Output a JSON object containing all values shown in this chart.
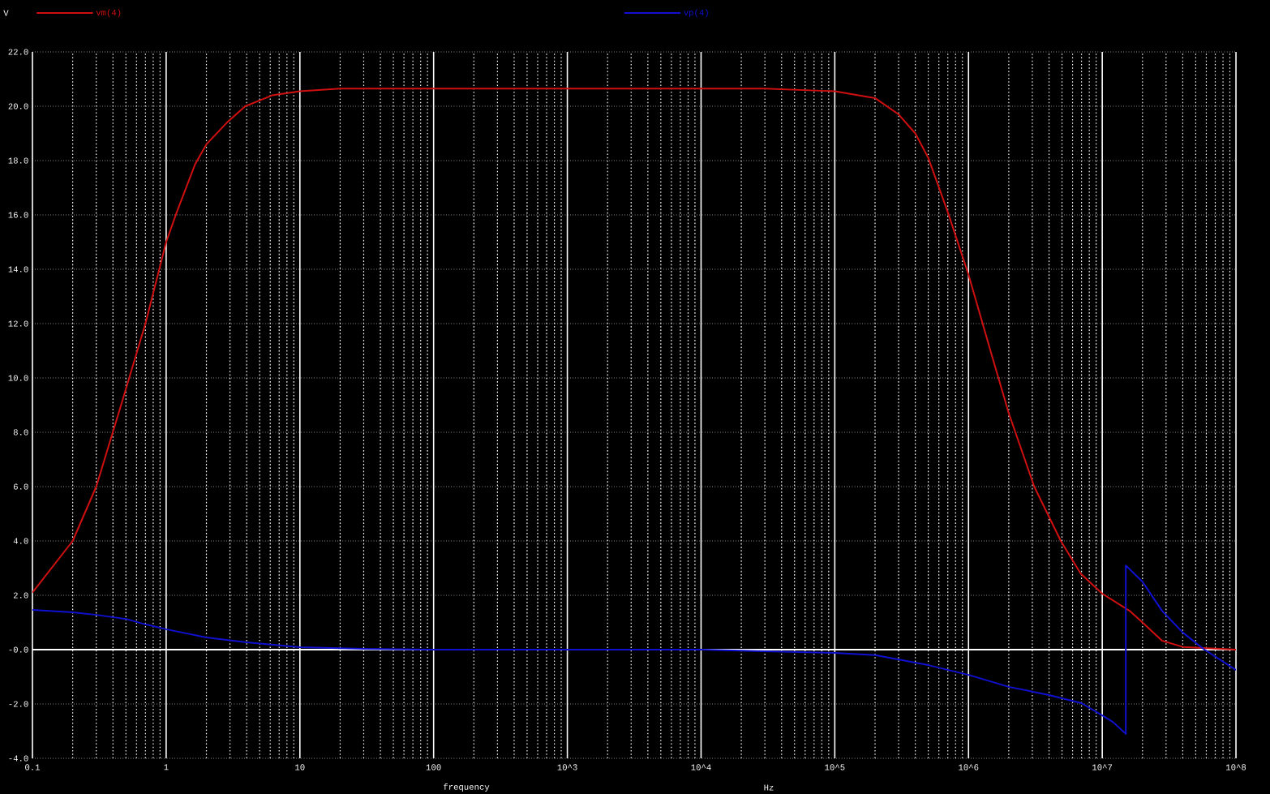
{
  "chart_data": {
    "type": "line",
    "xlabel": "frequency",
    "ylabel": "V",
    "annotations": [
      "Hz"
    ],
    "log": "x",
    "grid": true,
    "legend": "top",
    "xlim": [
      0.1,
      100000000
    ],
    "ylim": [
      -4,
      22
    ],
    "xticks": [
      {
        "value": 0.1,
        "label": "0.1"
      },
      1,
      10,
      100,
      {
        "value": 1000,
        "label": "10^3"
      },
      {
        "value": 10000,
        "label": "10^4"
      },
      {
        "value": 100000,
        "label": "10^5"
      },
      {
        "value": 1000000,
        "label": "10^6"
      },
      {
        "value": 10000000,
        "label": "10^7"
      },
      {
        "value": 100000000,
        "label": "10^8"
      }
    ],
    "yticks": [
      {
        "value": 22,
        "label": "22.0"
      },
      {
        "value": 20,
        "label": "20.0"
      },
      {
        "value": 18,
        "label": "18.0"
      },
      {
        "value": 16,
        "label": "16.0"
      },
      {
        "value": 14,
        "label": "14.0"
      },
      {
        "value": 12,
        "label": "12.0"
      },
      {
        "value": 10,
        "label": "10.0"
      },
      {
        "value": 8,
        "label": "8.0"
      },
      {
        "value": 6,
        "label": "6.0"
      },
      {
        "value": 4,
        "label": "4.0"
      },
      {
        "value": 2,
        "label": "2.0"
      },
      {
        "value": 0,
        "label": "-0.0"
      },
      {
        "value": -2,
        "label": "-2.0"
      },
      {
        "value": -4,
        "label": "-4.0"
      }
    ],
    "ref_lines": [
      {
        "axis": "y",
        "value": 0,
        "color": "#ffffff"
      }
    ],
    "series": [
      {
        "name": "vm(4)",
        "color": "#d01010",
        "x": [
          0.1,
          0.2,
          0.3,
          0.46,
          0.7,
          1,
          1.2,
          1.64,
          2,
          2.85,
          3.9,
          6.2,
          10,
          20,
          1000,
          30000,
          100000,
          200000,
          300000,
          400000,
          500000,
          700000,
          1000000,
          1500000,
          2000000,
          3100000,
          4900000,
          6900000,
          10000000,
          16000000,
          20000000,
          28000000,
          40000000,
          100000000
        ],
        "values": [
          2.1,
          4.0,
          6.0,
          9.0,
          12.0,
          15.0,
          16.1,
          17.85,
          18.6,
          19.4,
          20.0,
          20.4,
          20.55,
          20.65,
          20.65,
          20.65,
          20.55,
          20.3,
          19.7,
          19.0,
          18.1,
          16.1,
          13.8,
          10.8,
          8.7,
          6.0,
          4.0,
          2.8,
          2.06,
          1.43,
          1.0,
          0.33,
          0.1,
          0.0
        ]
      },
      {
        "name": "vp(4)",
        "color": "#1010d0",
        "x": [
          0.1,
          0.2,
          0.3,
          0.5,
          0.7,
          1,
          2,
          4,
          10,
          30,
          100,
          10000,
          30000,
          100000,
          200000,
          500000,
          1000000,
          2000000,
          4000000,
          7000000,
          10000000,
          12000000,
          15000000,
          15000000,
          20000000,
          28000000,
          40000000,
          57000000,
          100000000
        ],
        "values": [
          1.46,
          1.37,
          1.28,
          1.13,
          0.93,
          0.75,
          0.45,
          0.27,
          0.09,
          0.03,
          0.0,
          0.0,
          -0.06,
          -0.12,
          -0.2,
          -0.57,
          -0.93,
          -1.37,
          -1.67,
          -1.97,
          -2.42,
          -2.66,
          -3.1,
          3.1,
          2.5,
          1.43,
          0.63,
          0.03,
          -0.75
        ]
      }
    ]
  }
}
